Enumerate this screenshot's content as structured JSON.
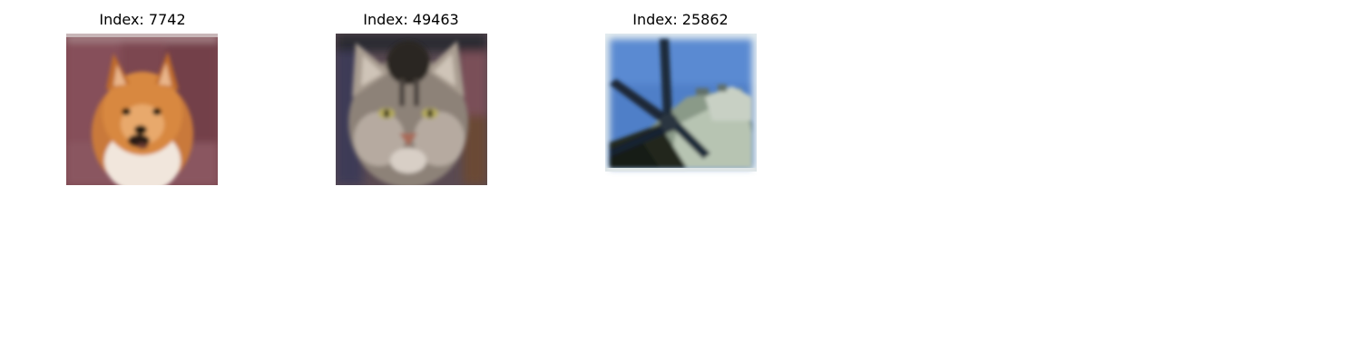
{
  "figure": {
    "panels": [
      {
        "title": "Index: 7742",
        "image_subject": "pomeranian-dog-face"
      },
      {
        "title": "Index: 49463",
        "image_subject": "tabby-cat-face"
      },
      {
        "title": "Index: 25862",
        "image_subject": "aircraft-against-blue-sky"
      }
    ]
  }
}
